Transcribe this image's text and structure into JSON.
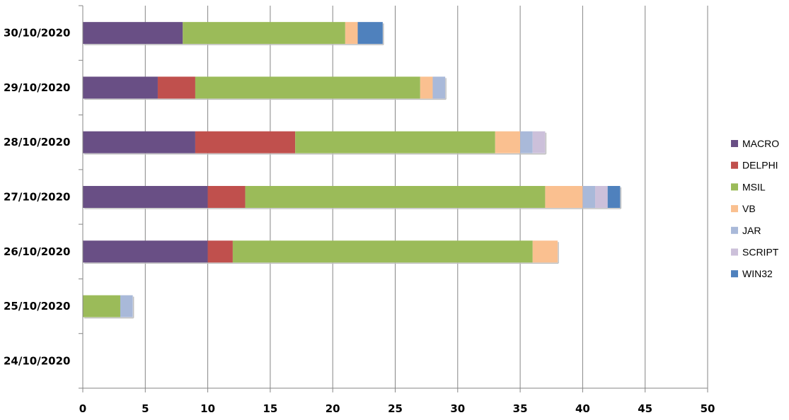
{
  "chart_data": {
    "type": "bar",
    "orientation": "horizontal",
    "stacked": true,
    "title": "",
    "xlabel": "",
    "ylabel": "",
    "xlim": [
      0,
      50
    ],
    "x_ticks": [
      0,
      5,
      10,
      15,
      20,
      25,
      30,
      35,
      40,
      45,
      50
    ],
    "grid": "vertical",
    "legend_position": "right",
    "categories": [
      "30/10/2020",
      "29/10/2020",
      "28/10/2020",
      "27/10/2020",
      "26/10/2020",
      "25/10/2020",
      "24/10/2020"
    ],
    "series": [
      {
        "name": "MACRO",
        "color": "#694F85",
        "values": [
          8,
          6,
          9,
          10,
          10,
          0,
          0
        ]
      },
      {
        "name": "DELPHI",
        "color": "#C0504D",
        "values": [
          0,
          3,
          8,
          3,
          2,
          0,
          0
        ]
      },
      {
        "name": "MSIL",
        "color": "#9BBB59",
        "values": [
          13,
          18,
          16,
          24,
          24,
          3,
          0
        ]
      },
      {
        "name": "VB",
        "color": "#FAC090",
        "values": [
          1,
          1,
          2,
          3,
          2,
          0,
          0
        ]
      },
      {
        "name": "JAR",
        "color": "#A9B9D9",
        "values": [
          0,
          1,
          1,
          1,
          0,
          1,
          0
        ]
      },
      {
        "name": "SCRIPT",
        "color": "#CCC0DA",
        "values": [
          0,
          0,
          1,
          1,
          0,
          0,
          0
        ]
      },
      {
        "name": "WIN32",
        "color": "#4F81BD",
        "values": [
          2,
          0,
          0,
          1,
          0,
          0,
          0
        ]
      }
    ]
  }
}
